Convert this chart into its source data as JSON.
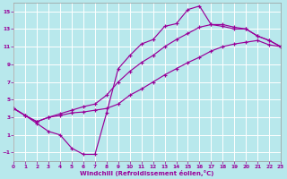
{
  "xlabel": "Windchill (Refroidissement éolien,°C)",
  "xlim": [
    0,
    23
  ],
  "ylim": [
    -2,
    16
  ],
  "xticks": [
    0,
    1,
    2,
    3,
    4,
    5,
    6,
    7,
    8,
    9,
    10,
    11,
    12,
    13,
    14,
    15,
    16,
    17,
    18,
    19,
    20,
    21,
    22,
    23
  ],
  "yticks": [
    -1,
    1,
    3,
    5,
    7,
    9,
    11,
    13,
    15
  ],
  "bg_color": "#b8e8ec",
  "grid_color": "#d0f0f4",
  "line_color": "#990099",
  "line1_x": [
    0,
    1,
    2,
    3,
    4,
    5,
    6,
    7,
    8,
    9,
    10,
    11,
    12,
    13,
    14,
    15,
    16,
    17,
    18,
    19,
    20,
    21,
    22,
    23
  ],
  "line1_y": [
    4.0,
    3.2,
    2.5,
    3.0,
    3.2,
    3.5,
    3.6,
    3.8,
    4.0,
    4.5,
    5.5,
    6.2,
    7.0,
    7.8,
    8.5,
    9.2,
    9.8,
    10.5,
    11.0,
    11.3,
    11.5,
    11.7,
    11.2,
    11.0
  ],
  "line2_x": [
    0,
    1,
    2,
    3,
    4,
    5,
    6,
    7,
    8,
    9,
    10,
    11,
    12,
    13,
    14,
    15,
    16,
    17,
    18,
    19,
    20,
    21,
    22,
    23
  ],
  "line2_y": [
    4.0,
    3.2,
    2.5,
    3.0,
    3.4,
    3.8,
    4.2,
    4.5,
    5.5,
    7.0,
    8.2,
    9.2,
    10.0,
    11.0,
    11.8,
    12.5,
    13.2,
    13.5,
    13.5,
    13.2,
    13.0,
    12.2,
    11.7,
    11.0
  ],
  "line3_x": [
    0,
    1,
    2,
    3,
    4,
    5,
    6,
    7,
    8,
    9,
    10,
    11,
    12,
    13,
    14,
    15,
    16,
    17,
    18,
    19,
    20,
    21,
    22,
    23
  ],
  "line3_y": [
    4.0,
    3.2,
    2.3,
    1.4,
    1.0,
    -0.5,
    -1.2,
    -1.2,
    3.5,
    8.5,
    10.0,
    11.3,
    11.8,
    13.3,
    13.6,
    15.2,
    15.6,
    13.5,
    13.3,
    13.0,
    13.0,
    12.2,
    11.7,
    11.0
  ]
}
